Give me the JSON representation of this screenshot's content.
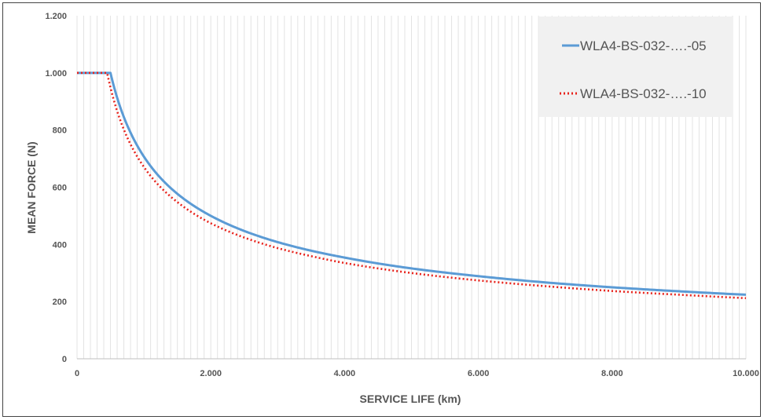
{
  "chart_data": {
    "type": "line",
    "title": "",
    "xlabel": "SERVICE LIFE (km)",
    "ylabel": "MEAN FORCE (N)",
    "xlim": [
      0,
      10000
    ],
    "ylim": [
      0,
      1200
    ],
    "x_ticks": [
      {
        "value": 0,
        "label": "0"
      },
      {
        "value": 2000,
        "label": "2.000"
      },
      {
        "value": 4000,
        "label": "4.000"
      },
      {
        "value": 6000,
        "label": "6.000"
      },
      {
        "value": 8000,
        "label": "8.000"
      },
      {
        "value": 10000,
        "label": "10.000"
      }
    ],
    "y_ticks": [
      {
        "value": 0,
        "label": "0"
      },
      {
        "value": 200,
        "label": "200"
      },
      {
        "value": 400,
        "label": "400"
      },
      {
        "value": 600,
        "label": "600"
      },
      {
        "value": 800,
        "label": "800"
      },
      {
        "value": 1000,
        "label": "1.000"
      },
      {
        "value": 1200,
        "label": "1.200"
      }
    ],
    "grid": {
      "vertical_minor": true,
      "vertical_step": 100,
      "horizontal": false
    },
    "legend": {
      "placement": "top-right"
    },
    "series": [
      {
        "name": "WLA4-BS-032-….-05",
        "color": "#5b9bd5",
        "style": "solid",
        "x": [
          0,
          500,
          600,
          800,
          1000,
          1200,
          1500,
          2000,
          2500,
          3000,
          3500,
          4000,
          5000,
          6000,
          7000,
          8000,
          9000,
          10000
        ],
        "y": [
          1000,
          1000,
          913,
          791,
          707,
          645,
          577,
          500,
          447,
          408,
          378,
          354,
          316,
          289,
          267,
          250,
          236,
          224
        ]
      },
      {
        "name": "WLA4-BS-032-….-10",
        "color": "#e8231c",
        "style": "dotted",
        "x": [
          0,
          450,
          500,
          600,
          800,
          1000,
          1200,
          1500,
          2000,
          2500,
          3000,
          3500,
          4000,
          5000,
          6000,
          7000,
          8000,
          9000,
          10000
        ],
        "y": [
          1000,
          1000,
          949,
          866,
          750,
          671,
          612,
          548,
          474,
          424,
          387,
          359,
          335,
          300,
          274,
          254,
          237,
          224,
          212
        ]
      }
    ]
  }
}
